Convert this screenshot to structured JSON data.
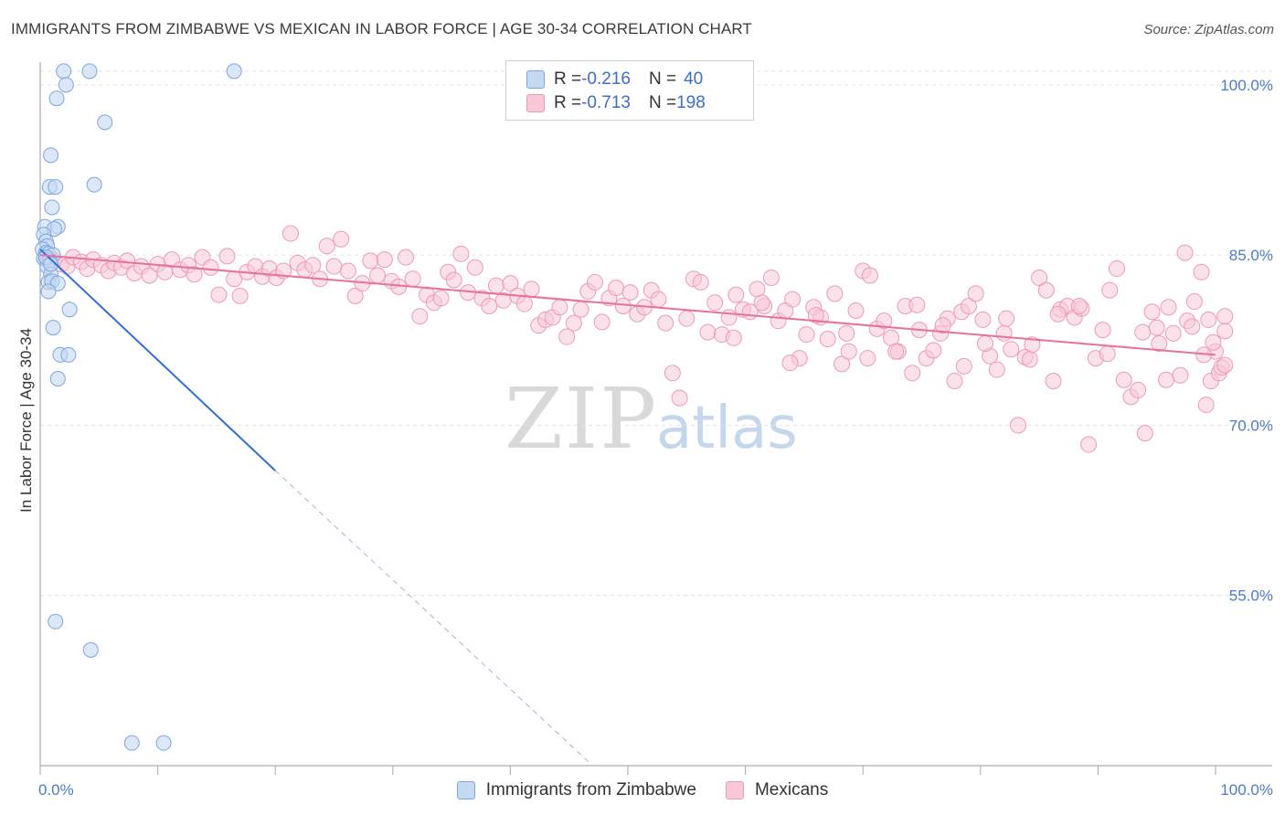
{
  "title": "IMMIGRANTS FROM ZIMBABWE VS MEXICAN IN LABOR FORCE | AGE 30-34 CORRELATION CHART",
  "source": "Source: ZipAtlas.com",
  "watermark": {
    "zip": "ZIP",
    "atlas": "atlas"
  },
  "legend_top": [
    {
      "r_label": "R = ",
      "r_value": "-0.216",
      "n_label": "N = ",
      "n_value": "40"
    },
    {
      "r_label": "R = ",
      "r_value": "-0.713",
      "n_label": "N = ",
      "n_value": "198"
    }
  ],
  "legend_bottom": [
    "Immigrants from Zimbabwe",
    "Mexicans"
  ],
  "colors": {
    "blue_fill": "#c5d9f3",
    "blue_stroke": "#7aa6e0",
    "blue_line": "#2f6fd1",
    "pink_fill": "#f8c8d8",
    "pink_stroke": "#ee9ab6",
    "pink_line": "#e8709a",
    "tick_text": "#4a7cc7",
    "grid": "#e2e2e2"
  },
  "chart_data": {
    "type": "scatter",
    "title": "IMMIGRANTS FROM ZIMBABWE VS MEXICAN IN LABOR FORCE | AGE 30-34 CORRELATION CHART",
    "xlabel": "",
    "ylabel": "In Labor Force | Age 30-34",
    "xlim": [
      0,
      100
    ],
    "ylim": [
      40,
      102
    ],
    "x_tick_labels": [
      "0.0%",
      "100.0%"
    ],
    "y_ticks": [
      55,
      70,
      85,
      100
    ],
    "y_tick_labels": [
      "55.0%",
      "70.0%",
      "85.0%",
      "100.0%"
    ],
    "grid": true,
    "legend_position": "top-center",
    "series": [
      {
        "name": "Immigrants from Zimbabwe",
        "color": "#7aa6e0",
        "points": [
          [
            2.0,
            101.2
          ],
          [
            4.2,
            101.2
          ],
          [
            16.5,
            101.2
          ],
          [
            2.2,
            100.0
          ],
          [
            1.4,
            98.8
          ],
          [
            5.5,
            96.7
          ],
          [
            0.9,
            93.8
          ],
          [
            4.6,
            91.2
          ],
          [
            0.8,
            91.0
          ],
          [
            1.3,
            91.0
          ],
          [
            1.0,
            89.2
          ],
          [
            0.4,
            87.5
          ],
          [
            1.5,
            87.5
          ],
          [
            1.2,
            87.3
          ],
          [
            0.3,
            86.8
          ],
          [
            0.5,
            86.2
          ],
          [
            0.6,
            85.8
          ],
          [
            0.2,
            85.5
          ],
          [
            0.5,
            85.2
          ],
          [
            0.7,
            85.1
          ],
          [
            1.1,
            85.0
          ],
          [
            0.3,
            84.7
          ],
          [
            0.8,
            84.5
          ],
          [
            0.6,
            84.0
          ],
          [
            0.9,
            83.3
          ],
          [
            0.7,
            82.6
          ],
          [
            1.0,
            82.7
          ],
          [
            1.5,
            82.5
          ],
          [
            0.7,
            81.8
          ],
          [
            2.5,
            80.2
          ],
          [
            1.1,
            78.6
          ],
          [
            1.7,
            76.2
          ],
          [
            2.4,
            76.2
          ],
          [
            1.5,
            74.1
          ],
          [
            1.3,
            52.7
          ],
          [
            4.3,
            50.2
          ],
          [
            7.8,
            42.0
          ],
          [
            10.5,
            42.0
          ],
          [
            0.5,
            84.8
          ],
          [
            0.9,
            84.2
          ]
        ],
        "trend": {
          "x0": 0.0,
          "y0": 85.5,
          "x1": 20.0,
          "y1": 66.0,
          "dashed_to_x": 47.0,
          "dashed_to_y": 40.0
        }
      },
      {
        "name": "Mexicans",
        "color": "#ee9ab6",
        "points": [
          [
            0.5,
            84.7
          ],
          [
            1.2,
            84.5
          ],
          [
            1.8,
            84.2
          ],
          [
            2.3,
            84.0
          ],
          [
            2.8,
            84.8
          ],
          [
            3.5,
            84.4
          ],
          [
            4.0,
            83.8
          ],
          [
            4.5,
            84.6
          ],
          [
            5.2,
            84.1
          ],
          [
            5.8,
            83.6
          ],
          [
            6.3,
            84.3
          ],
          [
            6.9,
            83.9
          ],
          [
            7.4,
            84.5
          ],
          [
            8.0,
            83.4
          ],
          [
            8.6,
            84.0
          ],
          [
            9.3,
            83.2
          ],
          [
            10.0,
            84.2
          ],
          [
            10.6,
            83.5
          ],
          [
            11.2,
            84.6
          ],
          [
            11.9,
            83.7
          ],
          [
            12.6,
            84.1
          ],
          [
            13.1,
            83.3
          ],
          [
            13.8,
            84.8
          ],
          [
            14.5,
            83.9
          ],
          [
            15.2,
            81.5
          ],
          [
            15.9,
            84.9
          ],
          [
            16.5,
            82.9
          ],
          [
            17.0,
            81.4
          ],
          [
            17.6,
            83.5
          ],
          [
            18.3,
            84.0
          ],
          [
            18.9,
            83.1
          ],
          [
            19.5,
            83.8
          ],
          [
            20.1,
            83.0
          ],
          [
            20.7,
            83.6
          ],
          [
            21.3,
            86.9
          ],
          [
            21.9,
            84.3
          ],
          [
            22.5,
            83.7
          ],
          [
            23.2,
            84.1
          ],
          [
            23.8,
            82.9
          ],
          [
            24.4,
            85.8
          ],
          [
            25.0,
            84.0
          ],
          [
            25.6,
            86.4
          ],
          [
            26.2,
            83.6
          ],
          [
            26.8,
            81.4
          ],
          [
            27.4,
            82.5
          ],
          [
            28.1,
            84.5
          ],
          [
            28.7,
            83.2
          ],
          [
            29.3,
            84.6
          ],
          [
            29.9,
            82.7
          ],
          [
            30.5,
            82.2
          ],
          [
            31.1,
            84.8
          ],
          [
            31.7,
            82.9
          ],
          [
            32.3,
            79.6
          ],
          [
            32.9,
            81.5
          ],
          [
            33.5,
            80.8
          ],
          [
            34.1,
            81.2
          ],
          [
            34.7,
            83.5
          ],
          [
            35.2,
            82.8
          ],
          [
            35.8,
            85.1
          ],
          [
            36.4,
            81.7
          ],
          [
            37.0,
            83.9
          ],
          [
            37.6,
            81.2
          ],
          [
            38.2,
            80.5
          ],
          [
            38.8,
            82.3
          ],
          [
            39.4,
            81.0
          ],
          [
            40.0,
            82.5
          ],
          [
            40.6,
            81.4
          ],
          [
            41.2,
            80.7
          ],
          [
            41.8,
            82.0
          ],
          [
            42.4,
            78.8
          ],
          [
            43.0,
            79.3
          ],
          [
            43.6,
            79.5
          ],
          [
            44.2,
            80.4
          ],
          [
            44.8,
            77.8
          ],
          [
            45.4,
            79.0
          ],
          [
            46.0,
            80.2
          ],
          [
            46.6,
            81.8
          ],
          [
            47.2,
            82.6
          ],
          [
            47.8,
            79.1
          ],
          [
            48.4,
            81.2
          ],
          [
            49.0,
            82.1
          ],
          [
            49.6,
            80.5
          ],
          [
            50.2,
            81.7
          ],
          [
            50.8,
            79.8
          ],
          [
            51.4,
            80.4
          ],
          [
            52.0,
            81.9
          ],
          [
            52.6,
            81.1
          ],
          [
            53.2,
            79.0
          ],
          [
            53.8,
            74.6
          ],
          [
            54.4,
            72.4
          ],
          [
            55.0,
            79.4
          ],
          [
            55.6,
            82.9
          ],
          [
            56.2,
            82.6
          ],
          [
            56.8,
            78.2
          ],
          [
            57.4,
            80.8
          ],
          [
            58.0,
            78.0
          ],
          [
            58.6,
            79.5
          ],
          [
            59.2,
            81.5
          ],
          [
            59.8,
            80.2
          ],
          [
            60.4,
            80.0
          ],
          [
            61.0,
            82.0
          ],
          [
            61.6,
            80.5
          ],
          [
            62.2,
            83.0
          ],
          [
            62.8,
            79.2
          ],
          [
            63.4,
            80.1
          ],
          [
            64.0,
            81.1
          ],
          [
            64.6,
            75.9
          ],
          [
            65.2,
            78.0
          ],
          [
            65.8,
            80.4
          ],
          [
            66.4,
            79.5
          ],
          [
            67.0,
            77.6
          ],
          [
            67.6,
            81.6
          ],
          [
            68.2,
            75.4
          ],
          [
            68.8,
            76.5
          ],
          [
            69.4,
            80.1
          ],
          [
            70.0,
            83.6
          ],
          [
            70.6,
            83.2
          ],
          [
            71.2,
            78.5
          ],
          [
            71.8,
            79.2
          ],
          [
            72.4,
            77.7
          ],
          [
            73.0,
            76.5
          ],
          [
            73.6,
            80.5
          ],
          [
            74.2,
            74.6
          ],
          [
            74.8,
            78.4
          ],
          [
            75.4,
            75.9
          ],
          [
            76.0,
            76.6
          ],
          [
            76.6,
            78.1
          ],
          [
            77.2,
            79.4
          ],
          [
            77.8,
            73.9
          ],
          [
            78.4,
            80.0
          ],
          [
            79.0,
            80.5
          ],
          [
            79.6,
            81.6
          ],
          [
            80.2,
            79.3
          ],
          [
            80.8,
            76.1
          ],
          [
            81.4,
            74.9
          ],
          [
            82.0,
            78.1
          ],
          [
            82.6,
            76.7
          ],
          [
            83.2,
            70.0
          ],
          [
            83.8,
            76.0
          ],
          [
            84.4,
            77.1
          ],
          [
            85.0,
            83.0
          ],
          [
            85.6,
            81.9
          ],
          [
            86.2,
            73.9
          ],
          [
            86.8,
            80.2
          ],
          [
            87.4,
            80.5
          ],
          [
            88.0,
            79.5
          ],
          [
            88.6,
            80.3
          ],
          [
            89.2,
            68.3
          ],
          [
            89.8,
            75.9
          ],
          [
            90.4,
            78.4
          ],
          [
            91.0,
            81.9
          ],
          [
            91.6,
            83.8
          ],
          [
            92.2,
            74.0
          ],
          [
            92.8,
            72.5
          ],
          [
            93.4,
            73.1
          ],
          [
            94.0,
            69.3
          ],
          [
            94.6,
            80.0
          ],
          [
            95.2,
            77.2
          ],
          [
            95.8,
            74.0
          ],
          [
            96.4,
            78.1
          ],
          [
            97.0,
            74.4
          ],
          [
            97.6,
            79.2
          ],
          [
            98.2,
            80.9
          ],
          [
            98.8,
            83.5
          ],
          [
            99.4,
            79.3
          ],
          [
            100.0,
            76.5
          ],
          [
            93.8,
            78.2
          ],
          [
            96.0,
            80.4
          ],
          [
            98.0,
            78.7
          ],
          [
            99.0,
            76.2
          ],
          [
            99.6,
            73.9
          ],
          [
            100.3,
            74.6
          ],
          [
            99.2,
            71.8
          ],
          [
            99.8,
            77.3
          ],
          [
            97.4,
            85.2
          ],
          [
            100.5,
            75.1
          ],
          [
            101.0,
            79.6
          ],
          [
            100.8,
            78.3
          ],
          [
            101.5,
            75.3
          ],
          [
            95.0,
            78.6
          ],
          [
            90.8,
            76.3
          ],
          [
            88.4,
            80.5
          ],
          [
            86.6,
            79.8
          ],
          [
            84.2,
            75.8
          ],
          [
            82.2,
            79.4
          ],
          [
            80.4,
            77.2
          ],
          [
            78.6,
            75.2
          ],
          [
            76.8,
            78.8
          ],
          [
            74.6,
            80.6
          ],
          [
            72.8,
            76.5
          ],
          [
            70.4,
            75.9
          ],
          [
            68.6,
            78.1
          ],
          [
            66.0,
            79.7
          ],
          [
            63.8,
            75.5
          ],
          [
            61.4,
            80.8
          ],
          [
            59.0,
            77.7
          ]
        ],
        "trend": {
          "x0": 0.0,
          "y0": 85.0,
          "x1": 100.0,
          "y1": 76.2
        }
      }
    ]
  }
}
